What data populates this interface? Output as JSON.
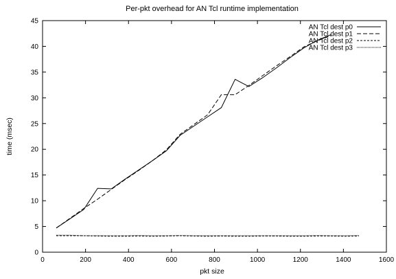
{
  "chart_data": {
    "type": "line",
    "title": "Per-pkt overhead for AN Tcl runtime implementation",
    "xlabel": "pkt size",
    "ylabel": "time (msec)",
    "xlim": [
      0,
      1600
    ],
    "ylim": [
      0,
      45
    ],
    "xticks": [
      "0",
      "200",
      "400",
      "600",
      "800",
      "1000",
      "1200",
      "1400",
      "1600"
    ],
    "yticks": [
      "0",
      "5",
      "10",
      "15",
      "20",
      "25",
      "30",
      "35",
      "40",
      "45"
    ],
    "grid": false,
    "legend_position": "top-right",
    "series": [
      {
        "name": "AN Tcl dest p0",
        "dash": "",
        "x": [
          64,
          128,
          192,
          256,
          320,
          384,
          448,
          512,
          576,
          640,
          704,
          768,
          832,
          896,
          960,
          1024,
          1088,
          1152,
          1216,
          1280,
          1344
        ],
        "y": [
          4.7,
          6.5,
          8.3,
          12.4,
          12.3,
          14.2,
          16.0,
          17.8,
          19.7,
          22.7,
          24.5,
          26.3,
          28.1,
          33.6,
          32.2,
          33.9,
          35.8,
          37.8,
          39.7,
          41.2,
          42.3
        ]
      },
      {
        "name": "AN Tcl dest p1",
        "dash": "6,3",
        "x": [
          64,
          128,
          192,
          256,
          320,
          384,
          448,
          512,
          576,
          640,
          704,
          768,
          832,
          896,
          960,
          1024,
          1088,
          1152,
          1216,
          1280,
          1344
        ],
        "y": [
          4.7,
          6.6,
          8.5,
          10.3,
          12.2,
          14.1,
          15.9,
          17.8,
          19.9,
          22.9,
          24.8,
          26.7,
          30.6,
          30.6,
          32.4,
          34.3,
          36.2,
          38.0,
          39.9,
          41.1,
          42.1
        ]
      },
      {
        "name": "AN Tcl dest p2",
        "dash": "3,2",
        "x": [
          64,
          128,
          192,
          256,
          320,
          384,
          448,
          512,
          576,
          640,
          704,
          768,
          832,
          896,
          960,
          1024,
          1088,
          1152,
          1216,
          1280,
          1344,
          1408,
          1472
        ],
        "y": [
          3.2,
          3.2,
          3.2,
          3.15,
          3.1,
          3.1,
          3.15,
          3.1,
          3.15,
          3.2,
          3.15,
          3.1,
          3.15,
          3.1,
          3.1,
          3.15,
          3.15,
          3.1,
          3.1,
          3.15,
          3.15,
          3.1,
          3.15
        ]
      },
      {
        "name": "AN Tcl dest p3",
        "dash": "1,1",
        "x": [
          64,
          128,
          192,
          256,
          320,
          384,
          448,
          512,
          576,
          640,
          704,
          768,
          832,
          896,
          960,
          1024,
          1088,
          1152,
          1216,
          1280,
          1344,
          1408,
          1472
        ],
        "y": [
          3.3,
          3.3,
          3.2,
          3.2,
          3.2,
          3.2,
          3.25,
          3.2,
          3.2,
          3.25,
          3.2,
          3.2,
          3.2,
          3.2,
          3.2,
          3.2,
          3.2,
          3.2,
          3.2,
          3.25,
          3.2,
          3.2,
          3.25
        ]
      }
    ]
  }
}
